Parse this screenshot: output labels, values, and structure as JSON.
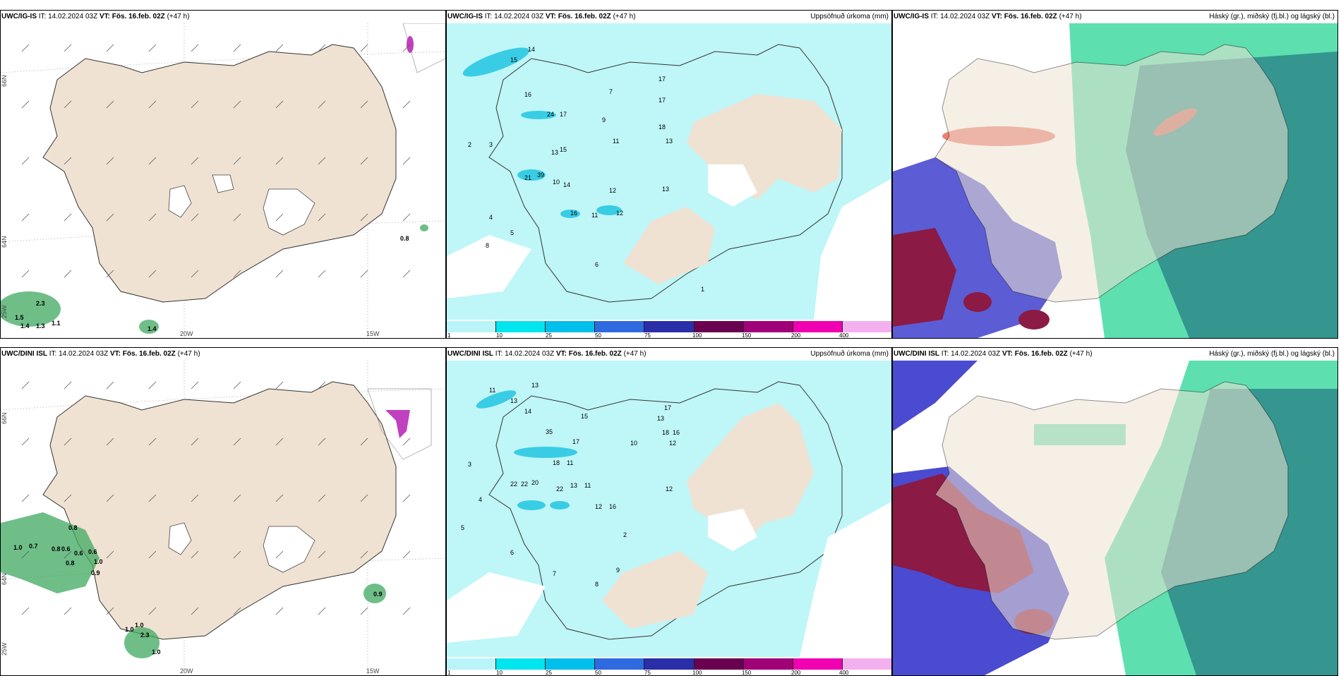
{
  "rows": [
    {
      "model": "UWC/IG-IS",
      "it_label": "IT:",
      "it_value": "14.02.2024 03Z",
      "vt_label": "VT:",
      "vt_value": "Fös. 16.feb. 02Z",
      "lead": "(+47 h)",
      "precip_title": "Uppsöfnuð úrkoma (mm)",
      "cloud_title": "Háský (gr.), miðský (fj.bl.) og lágský (bl.)",
      "wind_labels": [
        "2.3",
        "1.5",
        "1.4",
        "1.3",
        "1.1",
        "1.4",
        "0.8"
      ],
      "lon_labels": [
        "20W",
        "15W"
      ],
      "lat_labels": [
        "66N",
        "64N",
        "25W"
      ],
      "precip_values": [
        "14",
        "15",
        "16",
        "17",
        "24",
        "17",
        "13",
        "15",
        "39",
        "21",
        "14",
        "10",
        "16",
        "11",
        "12",
        "18",
        "13",
        "17",
        "12",
        "13",
        "2",
        "3",
        "4",
        "5",
        "6",
        "7",
        "8",
        "9",
        "1",
        "11"
      ]
    },
    {
      "model": "UWC/DINI ISL",
      "it_label": "IT:",
      "it_value": "14.02.2024 03Z",
      "vt_label": "VT:",
      "vt_value": "Fös. 16.feb. 02Z",
      "lead": "(+47 h)",
      "precip_title": "Uppsöfnuð úrkoma (mm)",
      "cloud_title": "Háský (gr.), miðský (fj.bl.) og lágský (bl.)",
      "wind_labels": [
        "0.8",
        "1.0",
        "0.7",
        "0.8",
        "0.6",
        "0.6",
        "0.6",
        "1.0",
        "0.8",
        "0.9",
        "1.0",
        "1.0",
        "2.3",
        "1.0",
        "0.9"
      ],
      "lon_labels": [
        "20W",
        "15W"
      ],
      "lat_labels": [
        "66N",
        "64N",
        "25W"
      ],
      "precip_values": [
        "13",
        "11",
        "13",
        "14",
        "15",
        "35",
        "17",
        "18",
        "11",
        "22",
        "22",
        "20",
        "22",
        "13",
        "11",
        "12",
        "16",
        "12",
        "17",
        "13",
        "18",
        "16",
        "12",
        "2",
        "3",
        "4",
        "5",
        "6",
        "7",
        "8",
        "9",
        "10"
      ]
    }
  ],
  "colorbar": {
    "ticks": [
      "1",
      "10",
      "25",
      "50",
      "75",
      "100",
      "150",
      "200",
      "400"
    ],
    "colors": [
      "#b8f4f8",
      "#00e5ee",
      "#00bfea",
      "#2f6ae0",
      "#2a2ea8",
      "#6a0050",
      "#a00078",
      "#f000b0",
      "#f4b0ee"
    ]
  },
  "colors": {
    "land": "#efe2d2",
    "precip_bg": "#bff6f8",
    "cloud_high": "#2d8a8a",
    "cloud_mid": "#19d18e",
    "cloud_low": "#4a4bd0",
    "cloud_red": "#8b1a45"
  }
}
